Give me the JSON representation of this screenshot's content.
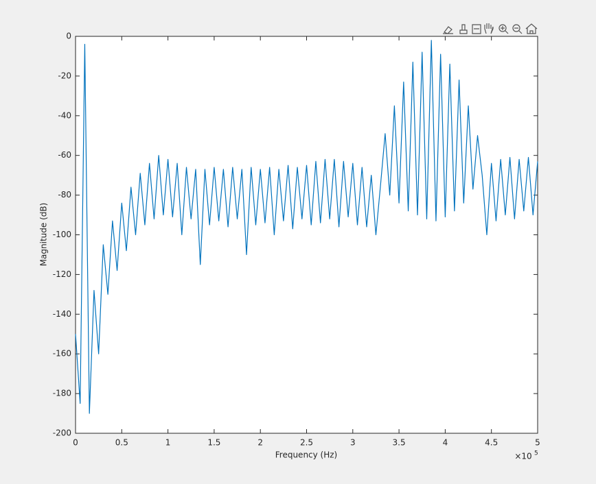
{
  "chart_data": {
    "type": "line",
    "xlabel": "Frequency (Hz)",
    "ylabel": "Magnitude (dB)",
    "x_multiplier": {
      "base": "×10",
      "exponent": "5"
    },
    "color": "#0072bd",
    "xlim": [
      0,
      500000
    ],
    "ylim": [
      -200,
      0
    ],
    "xticks": [
      0,
      {
        "value": 50000,
        "label": "0.5"
      },
      {
        "value": 100000,
        "label": "1"
      },
      {
        "value": 150000,
        "label": "1.5"
      },
      {
        "value": 200000,
        "label": "2"
      },
      {
        "value": 250000,
        "label": "2.5"
      },
      {
        "value": 300000,
        "label": "3"
      },
      {
        "value": 350000,
        "label": "3.5"
      },
      {
        "value": 400000,
        "label": "4"
      },
      {
        "value": 450000,
        "label": "4.5"
      },
      {
        "value": 500000,
        "label": "5"
      }
    ],
    "yticks": [
      -200,
      -180,
      -160,
      -140,
      -120,
      -100,
      -80,
      -60,
      -40,
      -20,
      0
    ],
    "x": [
      0,
      5000,
      10000,
      15000,
      20000,
      25000,
      30000,
      35000,
      40000,
      45000,
      50000,
      55000,
      60000,
      65000,
      70000,
      75000,
      80000,
      85000,
      90000,
      95000,
      100000,
      105000,
      110000,
      115000,
      120000,
      125000,
      130000,
      135000,
      140000,
      145000,
      150000,
      155000,
      160000,
      165000,
      170000,
      175000,
      180000,
      185000,
      190000,
      195000,
      200000,
      205000,
      210000,
      215000,
      220000,
      225000,
      230000,
      235000,
      240000,
      245000,
      250000,
      255000,
      260000,
      265000,
      270000,
      275000,
      280000,
      285000,
      290000,
      295000,
      300000,
      305000,
      310000,
      315000,
      320000,
      325000,
      330000,
      335000,
      340000,
      345000,
      350000,
      355000,
      360000,
      365000,
      370000,
      375000,
      380000,
      385000,
      390000,
      395000,
      400000,
      405000,
      410000,
      415000,
      420000,
      425000,
      430000,
      435000,
      440000,
      445000,
      450000,
      455000,
      460000,
      465000,
      470000,
      475000,
      480000,
      485000,
      490000,
      495000,
      500000
    ],
    "values": [
      -150,
      -185,
      -4,
      -190,
      -128,
      -160,
      -105,
      -130,
      -93,
      -118,
      -84,
      -108,
      -76,
      -100,
      -69,
      -95,
      -64,
      -92,
      -60,
      -90,
      -62,
      -91,
      -64,
      -100,
      -66,
      -92,
      -67,
      -115,
      -67,
      -95,
      -66,
      -93,
      -67,
      -96,
      -66,
      -92,
      -67,
      -110,
      -66,
      -95,
      -67,
      -94,
      -66,
      -100,
      -67,
      -93,
      -65,
      -97,
      -66,
      -92,
      -65,
      -95,
      -63,
      -94,
      -62,
      -92,
      -62,
      -96,
      -63,
      -91,
      -64,
      -95,
      -66,
      -96,
      -70,
      -100,
      -75,
      -49,
      -80,
      -35,
      -84,
      -23,
      -88,
      -13,
      -90,
      -8,
      -92,
      -2,
      -93,
      -9,
      -91,
      -14,
      -88,
      -22,
      -84,
      -35,
      -77,
      -50,
      -70,
      -100,
      -64,
      -93,
      -62,
      -90,
      -61,
      -92,
      -62,
      -88,
      -61,
      -90,
      -63
    ]
  }
}
